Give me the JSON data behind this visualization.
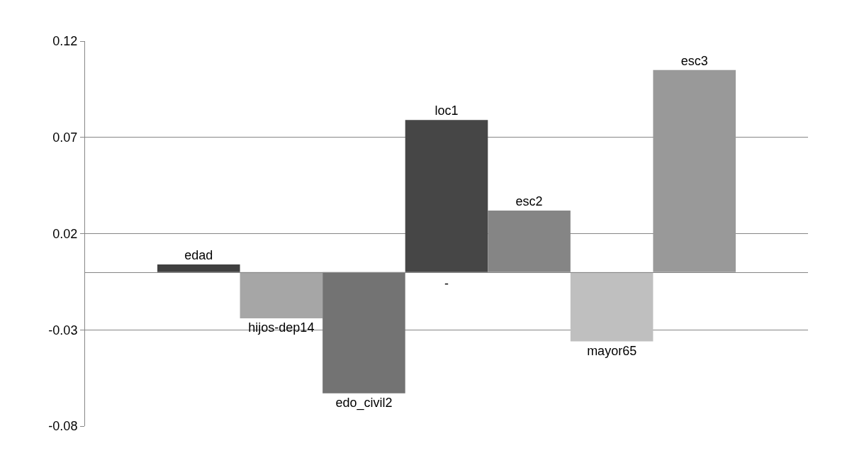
{
  "chart_data": {
    "type": "bar",
    "categories": [
      "-"
    ],
    "series": [
      {
        "name": "edad",
        "color": "#404040",
        "values": [
          0.004
        ]
      },
      {
        "name": "hijos-dep14",
        "color": "#a6a6a6",
        "values": [
          -0.024
        ]
      },
      {
        "name": "edo_civil2",
        "color": "#737373",
        "values": [
          -0.063
        ]
      },
      {
        "name": "loc1",
        "color": "#464646",
        "values": [
          0.079
        ]
      },
      {
        "name": "esc2",
        "color": "#858585",
        "values": [
          0.032
        ]
      },
      {
        "name": "mayor65",
        "color": "#bfbfbf",
        "values": [
          -0.036
        ]
      },
      {
        "name": "esc3",
        "color": "#999999",
        "values": [
          0.105
        ]
      }
    ],
    "ylim": [
      -0.08,
      0.12
    ],
    "yticks": [
      -0.08,
      -0.03,
      0.02,
      0.07,
      0.12
    ],
    "grid": "y",
    "legend": false
  }
}
